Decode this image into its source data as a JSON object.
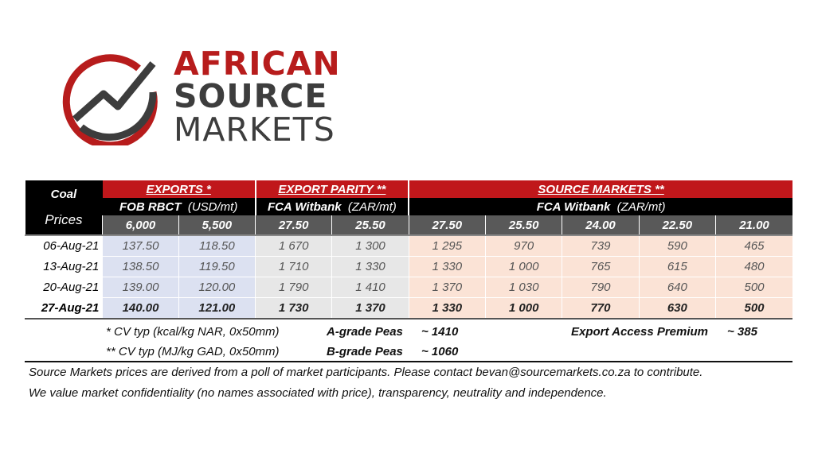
{
  "logo": {
    "line1": "AFRICAN",
    "line2": "SOURCE",
    "line3": "MARKETS",
    "colors": {
      "red": "#b71c1c",
      "grey": "#3d3d3d"
    }
  },
  "table": {
    "corner_title": "Coal",
    "corner_sub": "Prices",
    "groups": {
      "exports": "EXPORTS *",
      "parity": "EXPORT PARITY **",
      "source": "SOURCE MARKETS **"
    },
    "subgroups": {
      "exports_bold": "FOB RBCT",
      "exports_unit": "(USD/mt)",
      "parity_bold": "FCA Witbank",
      "parity_unit": "(ZAR/mt)",
      "source_bold": "FCA Witbank",
      "source_unit": "(ZAR/mt)"
    },
    "grades": [
      "6,000",
      "5,500",
      "27.50",
      "25.50",
      "27.50",
      "25.50",
      "24.00",
      "22.50",
      "21.00"
    ],
    "rows": [
      {
        "date": "06-Aug-21",
        "values": [
          "137.50",
          "118.50",
          "1 670",
          "1 300",
          "1 295",
          "970",
          "739",
          "590",
          "465"
        ]
      },
      {
        "date": "13-Aug-21",
        "values": [
          "138.50",
          "119.50",
          "1 710",
          "1 330",
          "1 330",
          "1 000",
          "765",
          "615",
          "480"
        ]
      },
      {
        "date": "20-Aug-21",
        "values": [
          "139.00",
          "120.00",
          "1 790",
          "1 410",
          "1 370",
          "1 030",
          "790",
          "640",
          "500"
        ]
      },
      {
        "date": "27-Aug-21",
        "values": [
          "140.00",
          "121.00",
          "1 730",
          "1 370",
          "1 330",
          "1 000",
          "770",
          "630",
          "500"
        ]
      }
    ],
    "colors": {
      "red": "#c0171b",
      "exports": "#dce1f1",
      "parity": "#e7e7e7",
      "source": "#fbe3d6"
    }
  },
  "notes": {
    "cv1": "* CV typ (kcal/kg NAR, 0x50mm)",
    "cv2": "** CV typ (MJ/kg GAD, 0x50mm)",
    "grade_a": "A-grade Peas",
    "grade_a_val": "~ 1410",
    "grade_b": "B-grade Peas",
    "grade_b_val": "~ 1060",
    "premium": "Export Access Premium",
    "premium_val": "~ 385"
  },
  "disclaimer": {
    "line1": "Source Markets prices are derived from a poll of market participants. Please contact bevan@sourcemarkets.co.za to contribute.",
    "line2": "We value market confidentiality (no names associated with price), transparency, neutrality and independence."
  }
}
